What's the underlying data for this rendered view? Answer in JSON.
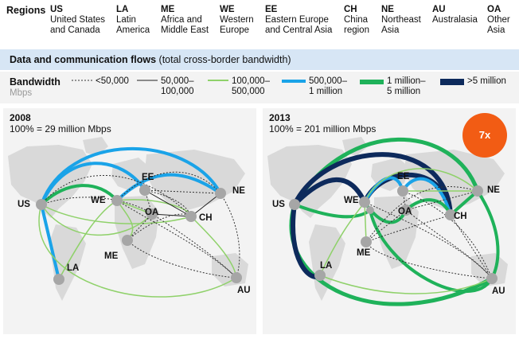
{
  "regions": {
    "label": "Regions",
    "items": [
      {
        "code": "US",
        "name": "United States\nand Canada"
      },
      {
        "code": "LA",
        "name": "Latin\nAmerica"
      },
      {
        "code": "ME",
        "name": "Africa and\nMiddle East"
      },
      {
        "code": "WE",
        "name": "Western\nEurope"
      },
      {
        "code": "EE",
        "name": "Eastern Europe\nand Central Asia"
      },
      {
        "code": "CH",
        "name": "China\nregion"
      },
      {
        "code": "NE",
        "name": "Northeast\nAsia"
      },
      {
        "code": "AU",
        "name": "Australasia"
      },
      {
        "code": "OA",
        "name": "Other\nAsia"
      }
    ]
  },
  "title": {
    "bold": "Data and communication flows",
    "rest": " (total cross-border bandwidth)",
    "background": "#d7e6f5"
  },
  "legend": {
    "label": "Bandwidth",
    "unit": "Mbps",
    "items": [
      {
        "text": "<50,000",
        "style": "dashed",
        "color": "#333333"
      },
      {
        "text": "50,000–\n100,000",
        "style": "thin",
        "color": "#222222"
      },
      {
        "text": "100,000–\n500,000",
        "style": "light-green",
        "color": "#8fd16a"
      },
      {
        "text": "500,000–\n1 million",
        "style": "blue",
        "color": "#1aa3e8"
      },
      {
        "text": "1 million–\n5 million",
        "style": "green",
        "color": "#1fb25a"
      },
      {
        "text": ">5 million",
        "style": "navy",
        "color": "#0d2a5c"
      }
    ]
  },
  "panels": [
    {
      "year": "2008",
      "total": "100% = 29 million Mbps",
      "badge": ""
    },
    {
      "year": "2013",
      "total": "100% = 201 million Mbps",
      "badge": "7x"
    }
  ],
  "badge_color": "#f25c14",
  "node_labels": {
    "US": "US",
    "LA": "LA",
    "WE": "WE",
    "EE": "EE",
    "ME": "ME",
    "OA": "OA",
    "CH": "CH",
    "NE": "NE",
    "AU": "AU"
  }
}
